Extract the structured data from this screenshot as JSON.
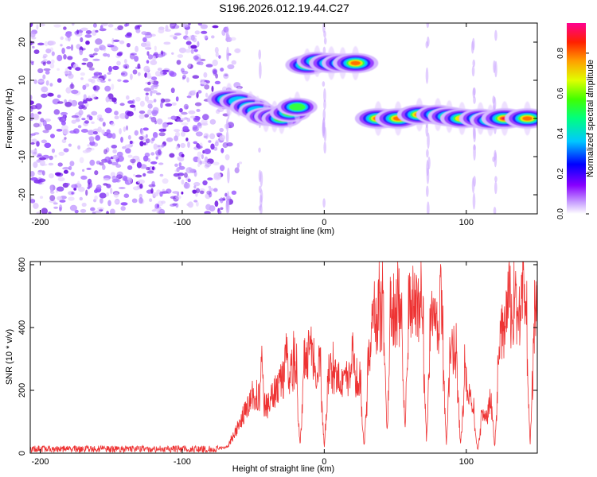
{
  "title": "S196.2026.012.19.44.C27",
  "chart_data": [
    {
      "type": "heatmap",
      "xlabel": "Height of straight line (km)",
      "ylabel": "Frequency (Hz)",
      "xlim": [
        -207,
        150
      ],
      "ylim": [
        -25,
        25
      ],
      "xticks": [
        -200,
        -100,
        0,
        100
      ],
      "yticks": [
        -20,
        -10,
        0,
        10,
        20
      ],
      "colorbar": {
        "label": "Normalized spectral amplitude",
        "range": [
          0,
          0.95
        ],
        "ticks": [
          0.0,
          0.2,
          0.4,
          0.6,
          0.8
        ],
        "colors": [
          "#ffffff",
          "#a000ff",
          "#0000ff",
          "#00ffff",
          "#00ff00",
          "#ffff00",
          "#ff8000",
          "#ff0000",
          "#ff00a0"
        ]
      },
      "noise_region": [
        -207,
        -68
      ],
      "blobs": [
        {
          "x": -67,
          "f": 5,
          "a": 0.75
        },
        {
          "x": -60,
          "f": 4.5,
          "a": 0.5
        },
        {
          "x": -52,
          "f": 3,
          "a": 0.6
        },
        {
          "x": -47,
          "f": 2,
          "a": 0.45
        },
        {
          "x": -41,
          "f": 0.5,
          "a": 0.55
        },
        {
          "x": -35,
          "f": 0.5,
          "a": 0.6
        },
        {
          "x": -30,
          "f": 0,
          "a": 0.55
        },
        {
          "x": -24,
          "f": 1.5,
          "a": 0.6
        },
        {
          "x": -19,
          "f": 3,
          "a": 0.55
        },
        {
          "x": -12,
          "f": 14,
          "a": 0.75
        },
        {
          "x": -5,
          "f": 15,
          "a": 0.6
        },
        {
          "x": 5,
          "f": 14.5,
          "a": 0.8
        },
        {
          "x": 13,
          "f": 14.5,
          "a": 0.65
        },
        {
          "x": 22,
          "f": 14.5,
          "a": 0.85
        },
        {
          "x": 38,
          "f": 0,
          "a": 0.9
        },
        {
          "x": 52,
          "f": 0,
          "a": 0.88
        },
        {
          "x": 67,
          "f": 1,
          "a": 0.8
        },
        {
          "x": 80,
          "f": 1,
          "a": 0.75
        },
        {
          "x": 88,
          "f": 0.5,
          "a": 0.7
        },
        {
          "x": 97,
          "f": 0,
          "a": 0.75
        },
        {
          "x": 110,
          "f": 0,
          "a": 0.7
        },
        {
          "x": 117,
          "f": -0.5,
          "a": 0.6
        },
        {
          "x": 127,
          "f": 0,
          "a": 0.9
        },
        {
          "x": 143,
          "f": 0,
          "a": 0.85
        }
      ],
      "vertical_streaks": [
        -68,
        -45,
        0,
        73,
        105,
        120
      ]
    },
    {
      "type": "line",
      "xlabel": "Height of straight line (km)",
      "ylabel": "SNR (10 * v/v)",
      "xlim": [
        -207,
        150
      ],
      "ylim": [
        0,
        610
      ],
      "xticks": [
        -200,
        -100,
        0,
        100
      ],
      "yticks": [
        0,
        200,
        400,
        600
      ],
      "color": "#ee3333",
      "envelope": {
        "x": [
          -207,
          -80,
          -68,
          -60,
          -50,
          -40,
          -30,
          -20,
          -10,
          0,
          10,
          20,
          30,
          35,
          45,
          55,
          65,
          75,
          85,
          95,
          100,
          105,
          110,
          115,
          125,
          135,
          145,
          150
        ],
        "y": [
          12,
          12,
          20,
          90,
          190,
          150,
          230,
          280,
          300,
          260,
          230,
          240,
          250,
          430,
          450,
          470,
          470,
          430,
          380,
          310,
          220,
          140,
          110,
          120,
          380,
          470,
          440,
          430
        ]
      },
      "peaks": [
        {
          "x": -44,
          "y": 340
        },
        {
          "x": -27,
          "y": 380
        },
        {
          "x": -10,
          "y": 410
        },
        {
          "x": 20,
          "y": 370
        },
        {
          "x": 43,
          "y": 560
        },
        {
          "x": 58,
          "y": 575
        },
        {
          "x": 82,
          "y": 560
        },
        {
          "x": 130,
          "y": 560
        },
        {
          "x": 140,
          "y": 610
        }
      ],
      "dips": [
        -17,
        0,
        28,
        44,
        57,
        72,
        86,
        96,
        108,
        120,
        145
      ]
    }
  ]
}
